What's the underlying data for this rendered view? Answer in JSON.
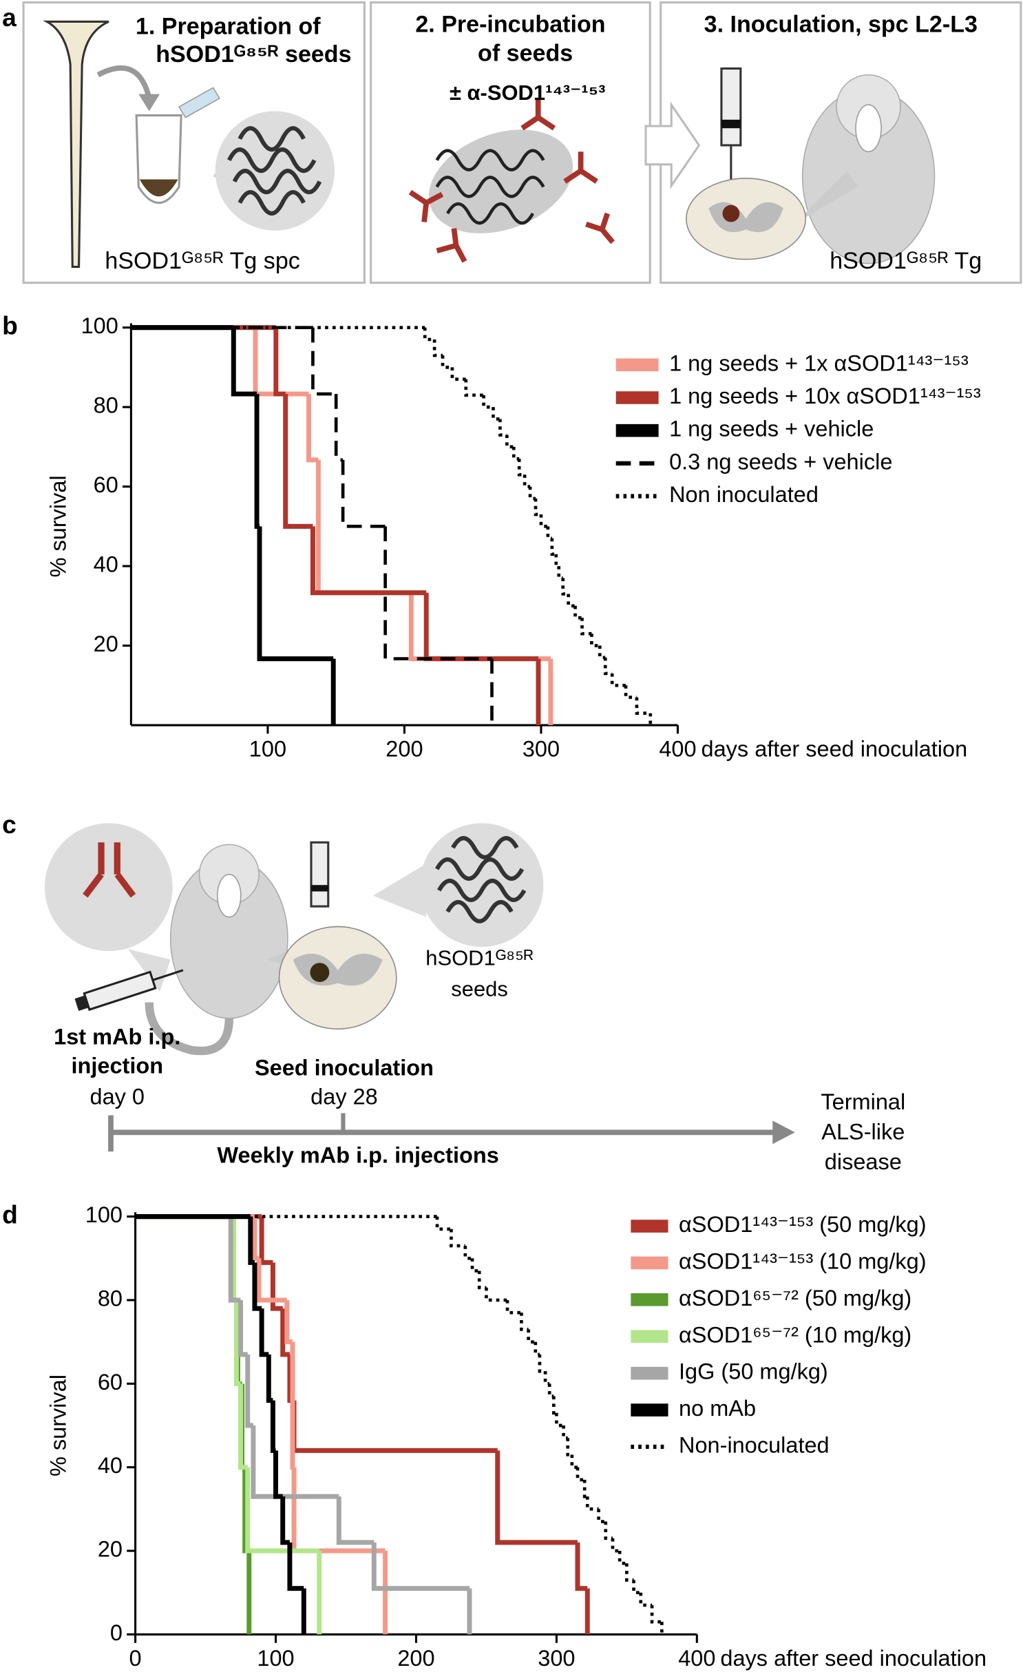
{
  "panel_a": {
    "label": "a",
    "steps": [
      {
        "title": [
          "1.  Preparation of",
          "hSOD1ᴳ⁸⁵ᴿ seeds"
        ],
        "caption": "hSOD1ᴳ⁸⁵ᴿ Tg spc"
      },
      {
        "title": [
          "2.  Pre-incubation",
          "of seeds"
        ],
        "treatment": "±  α-SOD1¹⁴³⁻¹⁵³"
      },
      {
        "title": [
          "3.  Inoculation, spc L2-L3"
        ],
        "caption": "hSOD1ᴳ⁸⁵ᴿ Tg"
      }
    ]
  },
  "panel_c": {
    "label": "c",
    "seeds_label": [
      "hSOD1ᴳ⁸⁵ᴿ",
      "seeds"
    ],
    "events": [
      {
        "title": [
          "1st mAb i.p.",
          "injection"
        ],
        "day": "day 0"
      },
      {
        "title": [
          "Seed inoculation"
        ],
        "day": "day 28"
      }
    ],
    "span": "Weekly mAb i.p. injections",
    "end": [
      "Terminal",
      "ALS-like",
      "disease"
    ]
  },
  "chart_data": [
    {
      "type": "step",
      "label": "b",
      "x_label": "days after seed inoculation",
      "y_label": "% survival",
      "xlim": [
        0,
        400
      ],
      "ylim": [
        0,
        100
      ],
      "xticks": [
        100,
        200,
        300,
        400
      ],
      "yticks": [
        20,
        40,
        60,
        80,
        100
      ],
      "legend": "right",
      "series": [
        {
          "name": "1 ng seeds + 1x αSOD1¹⁴³⁻¹⁵³",
          "color": "#f4998a",
          "style": "solid",
          "x": [
            0,
            91,
            130,
            137,
            205,
            307
          ],
          "values": [
            100,
            83.3,
            66.7,
            33.3,
            16.7,
            0
          ]
        },
        {
          "name": "1 ng seeds + 10x αSOD1¹⁴³⁻¹⁵³",
          "color": "#b0342a",
          "style": "solid",
          "x": [
            0,
            106,
            113,
            133,
            216,
            298
          ],
          "values": [
            100,
            83.3,
            50,
            33.3,
            16.7,
            0
          ]
        },
        {
          "name": "1 ng seeds + vehicle",
          "color": "#000000",
          "style": "solid",
          "x": [
            0,
            75,
            92,
            94,
            148
          ],
          "values": [
            100,
            83.3,
            50,
            16.7,
            0
          ]
        },
        {
          "name": "0.3 ng seeds + vehicle",
          "color": "#000000",
          "style": "dashed",
          "x": [
            0,
            133,
            150,
            155,
            186,
            264
          ],
          "values": [
            100,
            83.3,
            66.7,
            50,
            16.7,
            0
          ]
        },
        {
          "name": "Non inoculated",
          "color": "#000000",
          "style": "dotted",
          "x": [
            0,
            215,
            222,
            228,
            235,
            245,
            258,
            265,
            270,
            275,
            280,
            284,
            288,
            292,
            296,
            300,
            305,
            308,
            311,
            313,
            316,
            320,
            325,
            330,
            337,
            343,
            347,
            352,
            362,
            370,
            380
          ],
          "values": [
            100,
            97,
            93,
            90,
            87,
            83,
            80,
            77,
            73,
            70,
            67,
            63,
            60,
            57,
            53,
            50,
            47,
            43,
            40,
            37,
            33,
            30,
            27,
            23,
            20,
            17,
            13,
            10,
            7,
            3,
            0
          ]
        }
      ]
    },
    {
      "type": "step",
      "label": "d",
      "x_label": "days after seed inoculation",
      "y_label": "% survival",
      "xlim": [
        0,
        400
      ],
      "ylim": [
        0,
        100
      ],
      "xticks": [
        0,
        100,
        200,
        300,
        400
      ],
      "yticks": [
        0,
        20,
        40,
        60,
        80,
        100
      ],
      "legend": "right",
      "series": [
        {
          "name": "αSOD1¹⁴³⁻¹⁵³ (50 mg/kg)",
          "color": "#b0342a",
          "style": "solid",
          "x": [
            0,
            90,
            98,
            105,
            110,
            113,
            258,
            315,
            322
          ],
          "values": [
            100,
            89,
            78,
            67,
            56,
            44,
            22,
            11,
            0
          ]
        },
        {
          "name": "αSOD1¹⁴³⁻¹⁵³ (10 mg/kg)",
          "color": "#f4998a",
          "style": "solid",
          "x": [
            0,
            85,
            88,
            108,
            112,
            113,
            178
          ],
          "values": [
            100,
            90,
            80,
            70,
            40,
            20,
            0
          ]
        },
        {
          "name": "αSOD1⁶⁵⁻⁷² (50 mg/kg)",
          "color": "#5a9a2e",
          "style": "solid",
          "x": [
            0,
            70,
            73,
            76,
            78,
            81
          ],
          "values": [
            100,
            80,
            60,
            40,
            20,
            0
          ]
        },
        {
          "name": "αSOD1⁶⁵⁻⁷² (10 mg/kg)",
          "color": "#b3e68a",
          "style": "solid",
          "x": [
            0,
            70,
            72,
            75,
            80,
            131
          ],
          "values": [
            100,
            80,
            60,
            40,
            20,
            0
          ]
        },
        {
          "name": "IgG (50 mg/kg)",
          "color": "#a6a6a6",
          "style": "solid",
          "x": [
            0,
            68,
            75,
            80,
            84,
            145,
            170,
            238
          ],
          "values": [
            100,
            80,
            67,
            50,
            33,
            22,
            11,
            0
          ]
        },
        {
          "name": "no mAb",
          "color": "#000000",
          "style": "solid",
          "x": [
            0,
            82,
            85,
            90,
            95,
            98,
            100,
            105,
            110,
            120
          ],
          "values": [
            100,
            89,
            78,
            67,
            56,
            44,
            33,
            22,
            11,
            0
          ]
        },
        {
          "name": "Non-inoculated",
          "color": "#000000",
          "style": "dotted",
          "x": [
            0,
            215,
            225,
            235,
            240,
            245,
            250,
            265,
            275,
            280,
            285,
            288,
            292,
            295,
            298,
            300,
            305,
            308,
            311,
            315,
            320,
            322,
            330,
            335,
            340,
            345,
            350,
            355,
            360,
            368,
            375
          ],
          "values": [
            100,
            97,
            93,
            90,
            87,
            83,
            80,
            77,
            73,
            70,
            67,
            63,
            60,
            57,
            53,
            50,
            47,
            43,
            40,
            37,
            33,
            30,
            27,
            23,
            20,
            17,
            13,
            10,
            7,
            3,
            0
          ]
        }
      ]
    }
  ]
}
